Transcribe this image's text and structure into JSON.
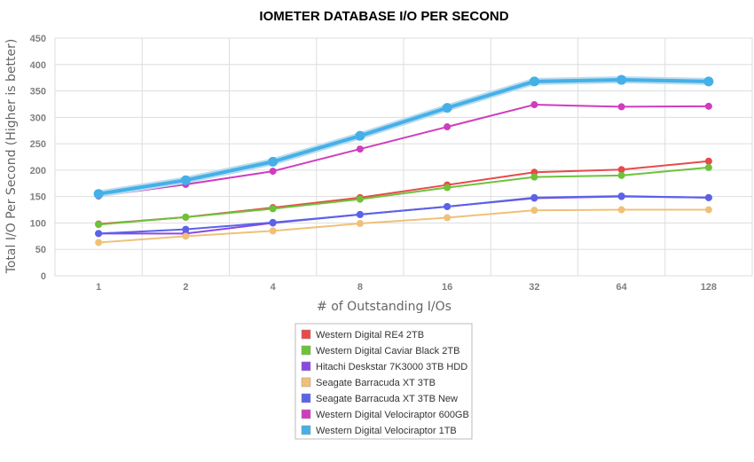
{
  "chart_data": {
    "type": "line",
    "title": "IOMETER DATABASE I/O PER SECOND",
    "xlabel": "# of Outstanding I/Os",
    "ylabel": "Total I/O Per Second (Higher is better)",
    "categories": [
      "1",
      "2",
      "4",
      "8",
      "16",
      "32",
      "64",
      "128"
    ],
    "ylim": [
      0,
      450
    ],
    "yticks": [
      0,
      50,
      100,
      150,
      200,
      250,
      300,
      350,
      400,
      450
    ],
    "grid": true,
    "legend_position": "bottom",
    "series": [
      {
        "name": "Western Digital RE4 2TB",
        "color": "#e84a4a",
        "values": [
          98,
          111,
          129,
          148,
          172,
          196,
          201,
          217
        ]
      },
      {
        "name": "Western Digital Caviar Black 2TB",
        "color": "#6ec23a",
        "values": [
          97,
          111,
          127,
          145,
          167,
          187,
          190,
          205
        ]
      },
      {
        "name": "Hitachi Deskstar 7K3000 3TB HDD",
        "color": "#8a4ae0",
        "values": [
          80,
          80,
          100,
          116,
          131,
          147,
          150,
          148
        ]
      },
      {
        "name": "Seagate Barracuda XT 3TB",
        "color": "#f0c07a",
        "values": [
          63,
          75,
          85,
          99,
          110,
          124,
          125,
          125
        ]
      },
      {
        "name": "Seagate Barracuda XT 3TB New",
        "color": "#5a63e8",
        "values": [
          80,
          88,
          101,
          116,
          131,
          148,
          151,
          148
        ]
      },
      {
        "name": "Western Digital Velociraptor 600GB",
        "color": "#d03cc0",
        "values": [
          151,
          173,
          198,
          240,
          282,
          324,
          320,
          321
        ]
      },
      {
        "name": "Western Digital Velociraptor 1TB",
        "color": "#45b0e8",
        "values": [
          155,
          181,
          216,
          265,
          318,
          368,
          371,
          368
        ]
      }
    ]
  }
}
